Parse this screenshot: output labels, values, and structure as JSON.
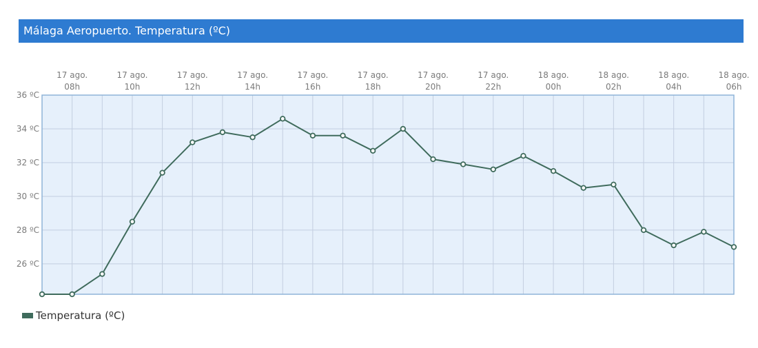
{
  "title": "Málaga Aeropuerto. Temperatura (ºC)",
  "colors": {
    "header_bg": "#2e7bd1",
    "plot_bg": "#e6f0fb",
    "grid": "#c3cee0",
    "border": "#8fb4d8",
    "line": "#3f6b5c",
    "marker_fill": "#ffffff",
    "label": "#7a7a7a"
  },
  "chart_data": {
    "type": "line",
    "title": "Málaga Aeropuerto. Temperatura (ºC)",
    "ylim": [
      24.2,
      36
    ],
    "grid": true,
    "legend_position": "bottom-left",
    "y_ticks": [
      {
        "value": 26,
        "label": "26 ºC"
      },
      {
        "value": 28,
        "label": "28 ºC"
      },
      {
        "value": 30,
        "label": "30 ºC"
      },
      {
        "value": 32,
        "label": "32 ºC"
      },
      {
        "value": 34,
        "label": "34 ºC"
      },
      {
        "value": 36,
        "label": "36 ºC"
      }
    ],
    "x_ticks": [
      {
        "index": 1,
        "line1": "17 ago.",
        "line2": "08h"
      },
      {
        "index": 3,
        "line1": "17 ago.",
        "line2": "10h"
      },
      {
        "index": 5,
        "line1": "17 ago.",
        "line2": "12h"
      },
      {
        "index": 7,
        "line1": "17 ago.",
        "line2": "14h"
      },
      {
        "index": 9,
        "line1": "17 ago.",
        "line2": "16h"
      },
      {
        "index": 11,
        "line1": "17 ago.",
        "line2": "18h"
      },
      {
        "index": 13,
        "line1": "17 ago.",
        "line2": "20h"
      },
      {
        "index": 15,
        "line1": "17 ago.",
        "line2": "22h"
      },
      {
        "index": 17,
        "line1": "18 ago.",
        "line2": "00h"
      },
      {
        "index": 19,
        "line1": "18 ago.",
        "line2": "02h"
      },
      {
        "index": 21,
        "line1": "18 ago.",
        "line2": "04h"
      },
      {
        "index": 23,
        "line1": "18 ago.",
        "line2": "06h"
      }
    ],
    "series": [
      {
        "name": "Temperatura (ºC)",
        "values": [
          24.2,
          24.2,
          25.4,
          28.5,
          31.4,
          33.2,
          33.8,
          33.5,
          34.6,
          33.6,
          33.6,
          32.7,
          34.0,
          32.2,
          31.9,
          31.6,
          32.4,
          31.5,
          30.5,
          30.7,
          28.0,
          27.1,
          27.9,
          27.0
        ]
      }
    ]
  }
}
